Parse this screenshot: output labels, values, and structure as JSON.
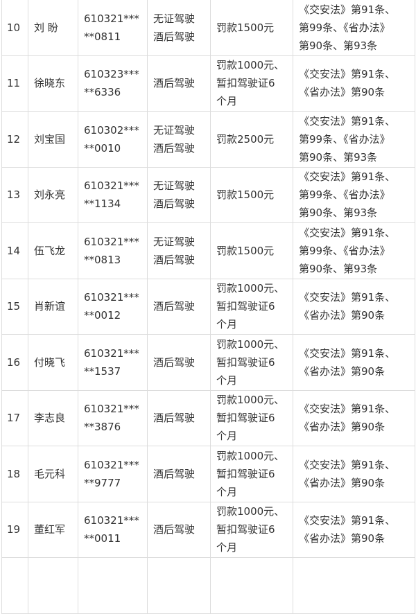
{
  "rows": [
    {
      "no": "10",
      "name": "刘  盼",
      "id": "610321***\n**0811",
      "violation": "无证驾驶\n酒后驾驶",
      "penalty": "罚款1500元",
      "law": "《交安法》第91条、\n第99条、《省办法》\n第90条、第93条"
    },
    {
      "no": "11",
      "name": "徐晓东",
      "id": "610323***\n**6336",
      "violation": "酒后驾驶",
      "penalty": "罚款1000元、\n暂扣驾驶证6\n个月",
      "law": "《交安法》第91条、\n《省办法》第90条"
    },
    {
      "no": "12",
      "name": "刘宝国",
      "id": "610302***\n**0010",
      "violation": "无证驾驶\n酒后驾驶",
      "penalty": "罚款2500元",
      "law": "《交安法》第91条、\n第99条、《省办法》\n第90条、第93条"
    },
    {
      "no": "13",
      "name": "刘永亮",
      "id": "610321***\n**1134",
      "violation": "无证驾驶\n酒后驾驶",
      "penalty": "罚款1500元",
      "law": "《交安法》第91条、\n第99条、《省办法》\n第90条、第93条"
    },
    {
      "no": "14",
      "name": "伍飞龙",
      "id": "610321***\n**0813",
      "violation": "无证驾驶\n酒后驾驶",
      "penalty": "罚款1500元",
      "law": "《交安法》第91条、\n第99条、《省办法》\n第90条、第93条"
    },
    {
      "no": "15",
      "name": "肖新谊",
      "id": "610321***\n**0012",
      "violation": "酒后驾驶",
      "penalty": "罚款1000元、\n暂扣驾驶证6\n个月",
      "law": "《交安法》第91条、\n《省办法》第90条"
    },
    {
      "no": "16",
      "name": "付晓飞",
      "id": "610321***\n**1537",
      "violation": "酒后驾驶",
      "penalty": "罚款1000元、\n暂扣驾驶证6\n个月",
      "law": "《交安法》第91条、\n《省办法》第90条"
    },
    {
      "no": "17",
      "name": "李志良",
      "id": "610321***\n**3876",
      "violation": "酒后驾驶",
      "penalty": "罚款1000元、\n暂扣驾驶证6\n个月",
      "law": "《交安法》第91条、\n《省办法》第90条"
    },
    {
      "no": "18",
      "name": "毛元科",
      "id": "610321***\n**9777",
      "violation": "酒后驾驶",
      "penalty": "罚款1000元、\n暂扣驾驶证6\n个月",
      "law": "《交安法》第91条、\n《省办法》第90条"
    },
    {
      "no": "19",
      "name": "董红军",
      "id": "610321***\n**0011",
      "violation": "酒后驾驶",
      "penalty": "罚款1000元、\n暂扣驾驶证6\n个月",
      "law": "《交安法》第91条、\n《省办法》第90条"
    }
  ]
}
